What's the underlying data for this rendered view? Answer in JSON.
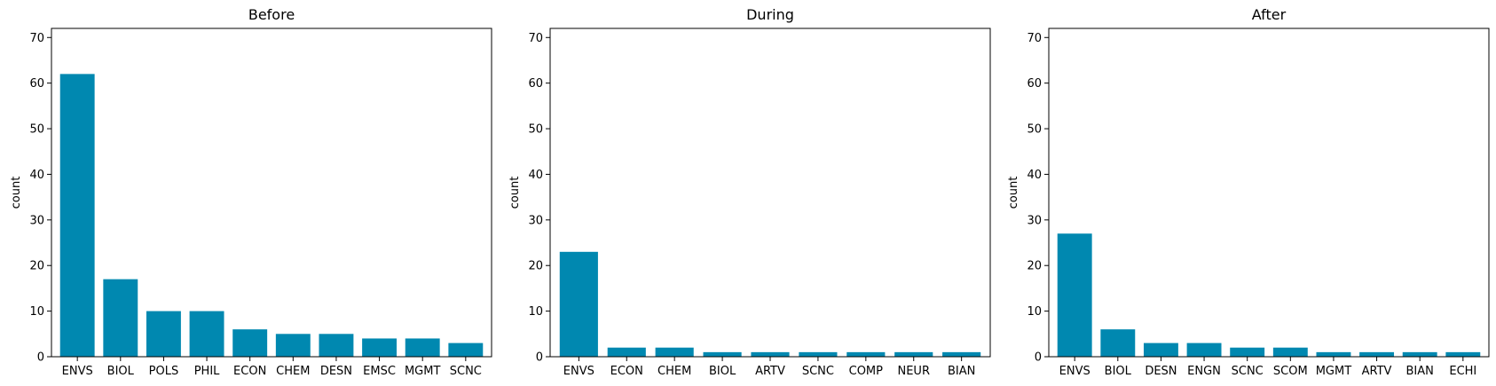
{
  "chart_data": [
    {
      "type": "bar",
      "title": "Before",
      "xlabel": "",
      "ylabel": "count",
      "ylim": [
        0,
        72
      ],
      "yticks": [
        0,
        10,
        20,
        30,
        40,
        50,
        60,
        70
      ],
      "categories": [
        "ENVS",
        "BIOL",
        "POLS",
        "PHIL",
        "ECON",
        "CHEM",
        "DESN",
        "EMSC",
        "MGMT",
        "SCNC"
      ],
      "values": [
        62,
        17,
        10,
        10,
        6,
        5,
        5,
        4,
        4,
        3
      ],
      "grid": false,
      "bar_color": "#0088b0"
    },
    {
      "type": "bar",
      "title": "During",
      "xlabel": "",
      "ylabel": "count",
      "ylim": [
        0,
        72
      ],
      "yticks": [
        0,
        10,
        20,
        30,
        40,
        50,
        60,
        70
      ],
      "categories": [
        "ENVS",
        "ECON",
        "CHEM",
        "BIOL",
        "ARTV",
        "SCNC",
        "COMP",
        "NEUR",
        "BIAN"
      ],
      "values": [
        23,
        2,
        2,
        1,
        1,
        1,
        1,
        1,
        1
      ],
      "grid": false,
      "bar_color": "#0088b0"
    },
    {
      "type": "bar",
      "title": "After",
      "xlabel": "",
      "ylabel": "count",
      "ylim": [
        0,
        72
      ],
      "yticks": [
        0,
        10,
        20,
        30,
        40,
        50,
        60,
        70
      ],
      "categories": [
        "ENVS",
        "BIOL",
        "DESN",
        "ENGN",
        "SCNC",
        "SCOM",
        "MGMT",
        "ARTV",
        "BIAN",
        "ECHI"
      ],
      "values": [
        27,
        6,
        3,
        3,
        2,
        2,
        1,
        1,
        1,
        1
      ],
      "grid": false,
      "bar_color": "#0088b0"
    }
  ]
}
